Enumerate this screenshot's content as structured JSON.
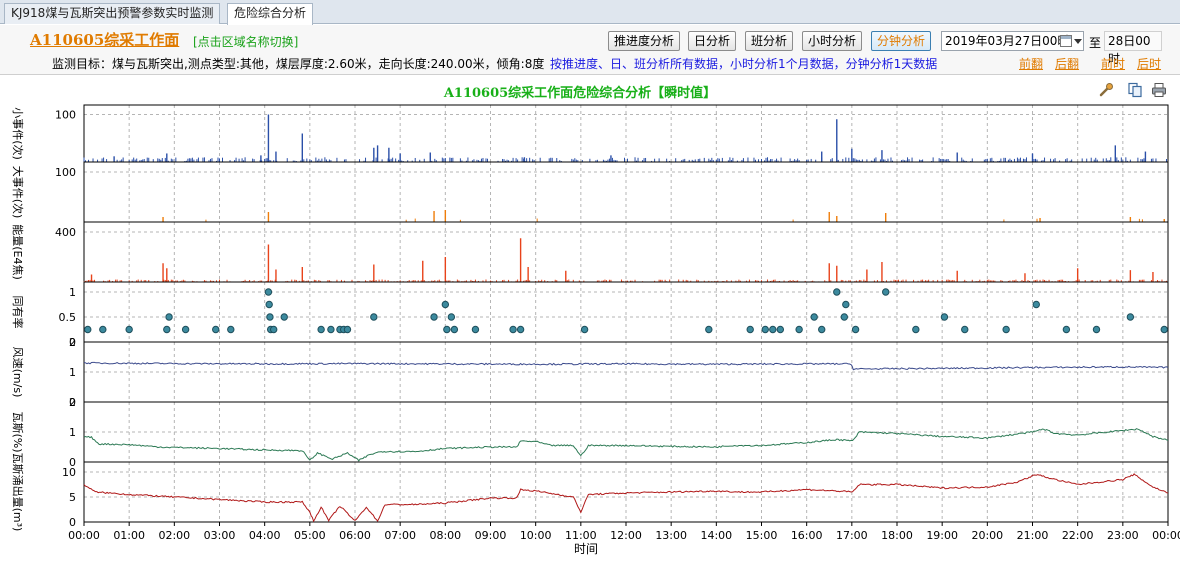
{
  "tabs": [
    {
      "label": "KJ918煤与瓦斯突出预警参数实时监测",
      "active": false
    },
    {
      "label": "危险综合分析",
      "active": true
    }
  ],
  "header": {
    "face_title": "A110605综采工作面",
    "switch_hint": "[点击区域名称切换]",
    "buttons": {
      "progress": "推进度分析",
      "day": "日分析",
      "shift": "班分析",
      "hour": "小时分析",
      "minute": "分钟分析"
    },
    "active_button": "minute",
    "date_from": "2019年03月27日00时",
    "to_label": "至",
    "date_to": "28日00时",
    "monitor_info": "监测目标：煤与瓦斯突出,测点类型:其他，煤层厚度:2.60米，走向长度:240.00米，倾角:8度",
    "data_note": "按推进度、日、班分析所有数据，小时分析1个月数据，分钟分析1天数据",
    "nav": {
      "prev_page": "前翻",
      "next_page": "后翻",
      "prev_hour": "前时",
      "next_hour": "后时"
    }
  },
  "chart_title": "A110605综采工作面危险综合分析【瞬时值】",
  "toolbar_icons": [
    "wrench-icon",
    "copy-icon",
    "print-icon"
  ],
  "chart_data": {
    "type": "line",
    "xlabel": "时间",
    "x_ticks": [
      "00:00",
      "01:00",
      "02:00",
      "03:00",
      "04:00",
      "05:00",
      "06:00",
      "07:00",
      "08:00",
      "09:00",
      "10:00",
      "11:00",
      "12:00",
      "13:00",
      "14:00",
      "15:00",
      "16:00",
      "17:00",
      "18:00",
      "19:00",
      "20:00",
      "21:00",
      "22:00",
      "23:00",
      "00:00"
    ],
    "x_range_minutes": [
      0,
      1440
    ],
    "grid": true,
    "panels": [
      {
        "name": "small-events",
        "ylabel": "小事件(次)",
        "color": "#2a4fa8",
        "render": "spikes",
        "ylim": [
          0,
          120
        ],
        "yticks": [
          100
        ],
        "baseline": 5,
        "peaks": [
          [
            40,
            12
          ],
          [
            110,
            18
          ],
          [
            235,
            14
          ],
          [
            245,
            100
          ],
          [
            255,
            22
          ],
          [
            290,
            60
          ],
          [
            385,
            30
          ],
          [
            390,
            35
          ],
          [
            405,
            30
          ],
          [
            420,
            18
          ],
          [
            460,
            20
          ],
          [
            585,
            10
          ],
          [
            700,
            14
          ],
          [
            980,
            22
          ],
          [
            1000,
            90
          ],
          [
            1020,
            28
          ],
          [
            1060,
            25
          ],
          [
            1160,
            20
          ],
          [
            1260,
            18
          ],
          [
            1370,
            35
          ],
          [
            1410,
            22
          ]
        ]
      },
      {
        "name": "large-events",
        "ylabel": "大事件(次)",
        "color": "#ef7d0a",
        "render": "spikes",
        "ylim": [
          0,
          120
        ],
        "yticks": [
          100
        ],
        "baseline": 0,
        "peaks": [
          [
            105,
            10
          ],
          [
            245,
            20
          ],
          [
            465,
            22
          ],
          [
            480,
            24
          ],
          [
            990,
            20
          ],
          [
            1000,
            12
          ],
          [
            1065,
            18
          ],
          [
            1270,
            8
          ],
          [
            1390,
            10
          ],
          [
            1435,
            6
          ]
        ]
      },
      {
        "name": "energy",
        "ylabel": "能量(E4焦)",
        "color": "#e8431a",
        "render": "spikes",
        "ylim": [
          0,
          480
        ],
        "yticks": [
          400
        ],
        "baseline": 10,
        "peaks": [
          [
            10,
            60
          ],
          [
            105,
            150
          ],
          [
            110,
            110
          ],
          [
            245,
            300
          ],
          [
            255,
            100
          ],
          [
            290,
            120
          ],
          [
            385,
            140
          ],
          [
            450,
            170
          ],
          [
            480,
            200
          ],
          [
            580,
            350
          ],
          [
            590,
            120
          ],
          [
            640,
            90
          ],
          [
            990,
            150
          ],
          [
            1000,
            130
          ],
          [
            1040,
            100
          ],
          [
            1060,
            160
          ],
          [
            1160,
            90
          ],
          [
            1250,
            70
          ],
          [
            1320,
            110
          ],
          [
            1390,
            95
          ],
          [
            1420,
            80
          ]
        ]
      },
      {
        "name": "risk-coefficient",
        "ylabel": "同有率",
        "color": "#3c8a9e",
        "render": "dots",
        "ylim": [
          0,
          1.2
        ],
        "yticks": [
          0,
          0.5,
          1
        ],
        "points": [
          [
            5,
            0.25
          ],
          [
            25,
            0.25
          ],
          [
            60,
            0.25
          ],
          [
            110,
            0.25
          ],
          [
            113,
            0.5
          ],
          [
            135,
            0.25
          ],
          [
            175,
            0.25
          ],
          [
            195,
            0.25
          ],
          [
            245,
            1.0
          ],
          [
            246,
            0.75
          ],
          [
            247,
            0.5
          ],
          [
            248,
            0.25
          ],
          [
            252,
            0.25
          ],
          [
            266,
            0.5
          ],
          [
            315,
            0.25
          ],
          [
            328,
            0.25
          ],
          [
            340,
            0.25
          ],
          [
            345,
            0.25
          ],
          [
            350,
            0.25
          ],
          [
            385,
            0.5
          ],
          [
            465,
            0.5
          ],
          [
            480,
            0.75
          ],
          [
            482,
            0.25
          ],
          [
            488,
            0.5
          ],
          [
            492,
            0.25
          ],
          [
            520,
            0.25
          ],
          [
            570,
            0.25
          ],
          [
            580,
            0.25
          ],
          [
            665,
            0.25
          ],
          [
            830,
            0.25
          ],
          [
            885,
            0.25
          ],
          [
            905,
            0.25
          ],
          [
            915,
            0.25
          ],
          [
            925,
            0.25
          ],
          [
            950,
            0.25
          ],
          [
            970,
            0.5
          ],
          [
            980,
            0.25
          ],
          [
            1000,
            1.0
          ],
          [
            1010,
            0.5
          ],
          [
            1012,
            0.75
          ],
          [
            1025,
            0.25
          ],
          [
            1065,
            1.0
          ],
          [
            1105,
            0.25
          ],
          [
            1143,
            0.5
          ],
          [
            1170,
            0.25
          ],
          [
            1225,
            0.25
          ],
          [
            1265,
            0.75
          ],
          [
            1305,
            0.25
          ],
          [
            1345,
            0.25
          ],
          [
            1390,
            0.5
          ],
          [
            1435,
            0.25
          ]
        ]
      },
      {
        "name": "wind-speed",
        "ylabel": "风速(m/s)",
        "color": "#3b4a8c",
        "render": "line",
        "ylim": [
          0,
          2
        ],
        "yticks": [
          0,
          1,
          2
        ],
        "points": [
          [
            0,
            1.3
          ],
          [
            120,
            1.28
          ],
          [
            240,
            1.27
          ],
          [
            360,
            1.28
          ],
          [
            480,
            1.27
          ],
          [
            600,
            1.26
          ],
          [
            720,
            1.27
          ],
          [
            840,
            1.26
          ],
          [
            960,
            1.27
          ],
          [
            1019,
            1.27
          ],
          [
            1022,
            1.1
          ],
          [
            1140,
            1.12
          ],
          [
            1260,
            1.15
          ],
          [
            1380,
            1.17
          ],
          [
            1440,
            1.15
          ]
        ]
      },
      {
        "name": "gas-concentration",
        "ylabel": "瓦斯(%)",
        "color": "#2d7a55",
        "render": "line",
        "ylim": [
          0,
          2
        ],
        "yticks": [
          0,
          1,
          2
        ],
        "points": [
          [
            0,
            0.85
          ],
          [
            10,
            0.82
          ],
          [
            20,
            0.6
          ],
          [
            60,
            0.58
          ],
          [
            100,
            0.5
          ],
          [
            180,
            0.45
          ],
          [
            240,
            0.4
          ],
          [
            290,
            0.38
          ],
          [
            300,
            0.05
          ],
          [
            310,
            0.3
          ],
          [
            330,
            0.1
          ],
          [
            350,
            0.3
          ],
          [
            365,
            0.05
          ],
          [
            380,
            0.25
          ],
          [
            395,
            0.35
          ],
          [
            440,
            0.35
          ],
          [
            480,
            0.45
          ],
          [
            540,
            0.5
          ],
          [
            575,
            0.5
          ],
          [
            580,
            0.7
          ],
          [
            600,
            0.68
          ],
          [
            620,
            0.55
          ],
          [
            650,
            0.55
          ],
          [
            660,
            0.2
          ],
          [
            670,
            0.55
          ],
          [
            720,
            0.55
          ],
          [
            780,
            0.52
          ],
          [
            840,
            0.5
          ],
          [
            860,
            0.55
          ],
          [
            900,
            0.55
          ],
          [
            960,
            0.65
          ],
          [
            1000,
            0.75
          ],
          [
            1021,
            0.7
          ],
          [
            1030,
            1.0
          ],
          [
            1080,
            0.95
          ],
          [
            1140,
            0.85
          ],
          [
            1200,
            0.8
          ],
          [
            1260,
            1.0
          ],
          [
            1275,
            1.1
          ],
          [
            1290,
            0.95
          ],
          [
            1320,
            0.9
          ],
          [
            1380,
            1.05
          ],
          [
            1400,
            1.1
          ],
          [
            1420,
            0.85
          ],
          [
            1440,
            0.72
          ]
        ]
      },
      {
        "name": "gas-emission",
        "ylabel": "瓦斯涌出量(m³)",
        "color": "#b01818",
        "render": "line",
        "ylim": [
          0,
          12
        ],
        "yticks": [
          0,
          5,
          10
        ],
        "points": [
          [
            0,
            7.5
          ],
          [
            15,
            6
          ],
          [
            60,
            5.5
          ],
          [
            120,
            5
          ],
          [
            180,
            4.5
          ],
          [
            240,
            4
          ],
          [
            290,
            4
          ],
          [
            300,
            2
          ],
          [
            305,
            0.2
          ],
          [
            315,
            3
          ],
          [
            325,
            0.3
          ],
          [
            340,
            3.2
          ],
          [
            360,
            0.2
          ],
          [
            375,
            3
          ],
          [
            390,
            0.2
          ],
          [
            400,
            3.5
          ],
          [
            440,
            3.5
          ],
          [
            480,
            3.8
          ],
          [
            540,
            4.8
          ],
          [
            575,
            4.8
          ],
          [
            580,
            6.5
          ],
          [
            600,
            6.2
          ],
          [
            650,
            5
          ],
          [
            660,
            2
          ],
          [
            670,
            5.5
          ],
          [
            720,
            5.8
          ],
          [
            780,
            6
          ],
          [
            840,
            6.2
          ],
          [
            870,
            6
          ],
          [
            900,
            6
          ],
          [
            960,
            6.5
          ],
          [
            1000,
            6.2
          ],
          [
            1021,
            6
          ],
          [
            1030,
            7.5
          ],
          [
            1080,
            7.5
          ],
          [
            1140,
            6.8
          ],
          [
            1200,
            7
          ],
          [
            1240,
            8
          ],
          [
            1265,
            9.5
          ],
          [
            1290,
            8.5
          ],
          [
            1320,
            7.5
          ],
          [
            1380,
            8.5
          ],
          [
            1395,
            9.5
          ],
          [
            1420,
            7
          ],
          [
            1440,
            5.8
          ]
        ]
      }
    ]
  }
}
